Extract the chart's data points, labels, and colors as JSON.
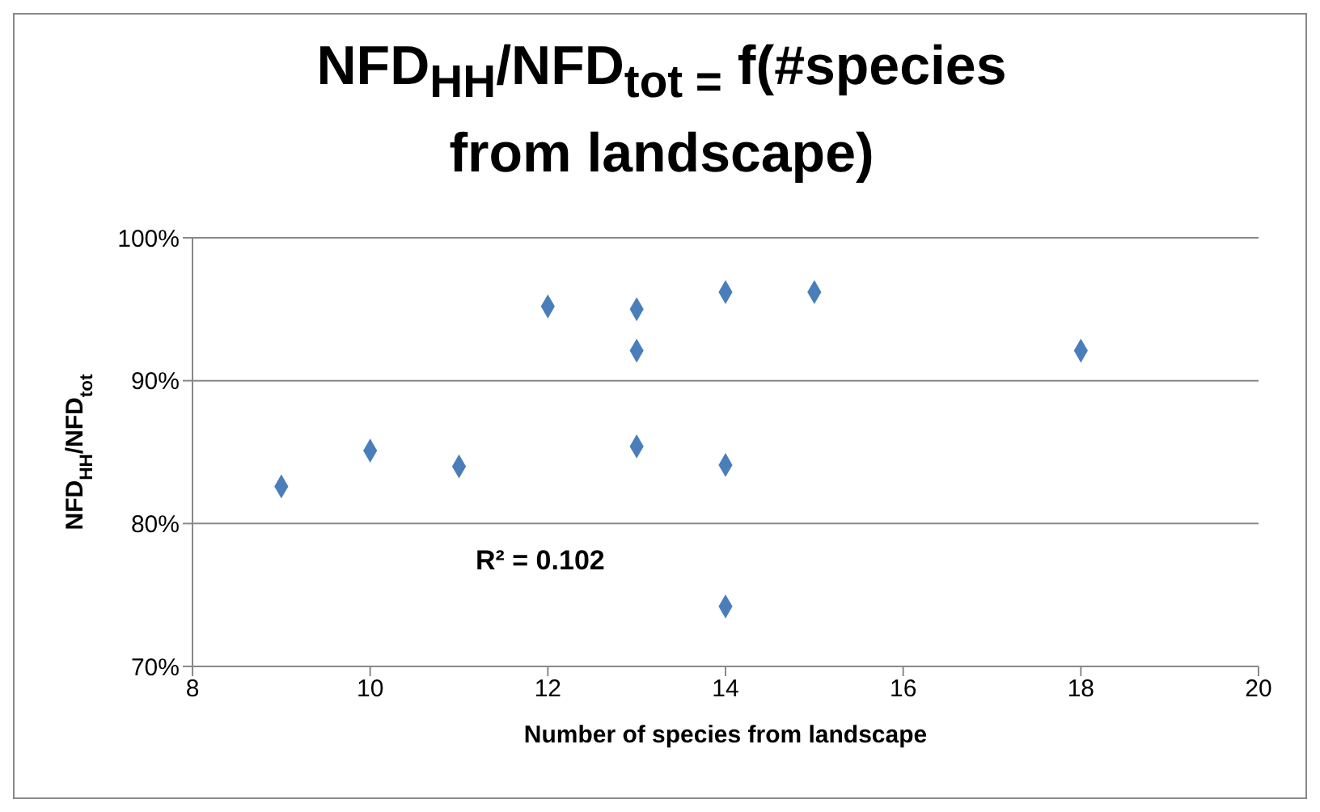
{
  "chart_data": {
    "type": "scatter",
    "title": "NFD$_{HH}$/NFD$_{tot =}$ f(#species from landscape)",
    "xlabel": "Number of species from landscape",
    "ylabel": "NFD$_{HH}$/NFD$_{tot}$",
    "x": [
      9,
      10,
      11,
      12,
      13,
      13,
      13,
      14,
      14,
      14,
      15,
      18
    ],
    "values": [
      82.6,
      85.1,
      84.0,
      95.2,
      95.0,
      92.1,
      85.4,
      96.2,
      84.1,
      74.2,
      96.2,
      92.1
    ],
    "color": "#4a7ebb",
    "marker": "diamond",
    "grid": "y",
    "legend": false,
    "xlim": [
      8,
      20
    ],
    "xticks": [
      8,
      10,
      12,
      14,
      16,
      18,
      20
    ],
    "ylim": [
      70,
      100
    ],
    "yticks": [
      {
        "value": 70,
        "label": "70%"
      },
      {
        "value": 80,
        "label": "80%"
      },
      {
        "value": 90,
        "label": "90%"
      },
      {
        "value": 100,
        "label": "100%"
      }
    ],
    "annotations": [
      "R² = 0.102"
    ]
  }
}
